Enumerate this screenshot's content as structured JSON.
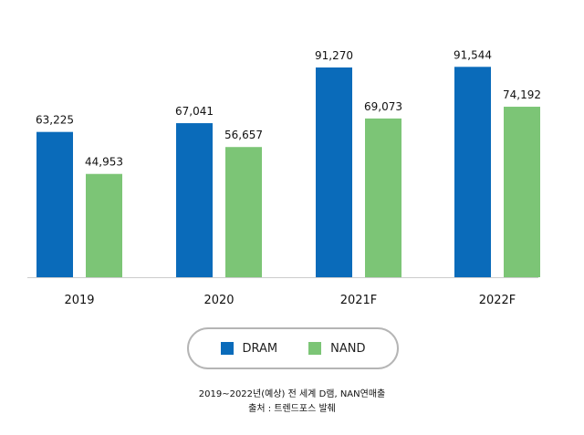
{
  "chart_data": {
    "type": "bar",
    "categories": [
      "2019",
      "2020",
      "2021F",
      "2022F"
    ],
    "series": [
      {
        "name": "DRAM",
        "values": [
          63225,
          67041,
          91270,
          91544
        ],
        "color": "#0a6bba"
      },
      {
        "name": "NAND",
        "values": [
          44953,
          56657,
          69073,
          74192
        ],
        "color": "#7cc576"
      }
    ],
    "data_labels": [
      [
        "63,225",
        "67,041",
        "91,270",
        "91,544"
      ],
      [
        "44,953",
        "56,657",
        "69,073",
        "74,192"
      ]
    ],
    "ylim": [
      0,
      100000
    ],
    "grid": false,
    "legend_placement": "bottom-center"
  },
  "caption": {
    "line1": "2019~2022년(예상) 전 세계 D램, NAN연매출",
    "line2": "출처 : 트렌드포스 발췌"
  },
  "colors": {
    "baseline": "#cccccc",
    "text": "#111111"
  }
}
